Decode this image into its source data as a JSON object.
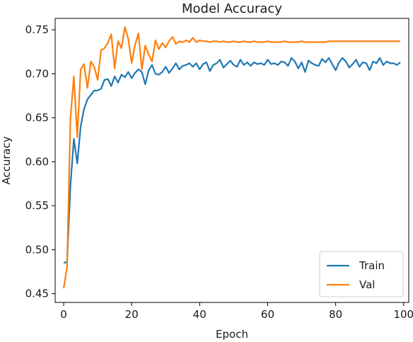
{
  "chart_data": {
    "type": "line",
    "title": "Model Accuracy",
    "xlabel": "Epoch",
    "ylabel": "Accuracy",
    "xlim": [
      -2.5,
      101.5
    ],
    "ylim": [
      0.44,
      0.763
    ],
    "xticks": [
      0,
      20,
      40,
      60,
      80,
      100
    ],
    "yticks": [
      0.45,
      0.5,
      0.55,
      0.6,
      0.65,
      0.7,
      0.75
    ],
    "ytick_labels": [
      "0.45",
      "0.50",
      "0.55",
      "0.60",
      "0.65",
      "0.70",
      "0.75"
    ],
    "grid": false,
    "legend_position": "lower-right",
    "series": [
      {
        "name": "Train",
        "color": "#1f77b4",
        "x": [
          0,
          1,
          2,
          3,
          4,
          5,
          6,
          7,
          8,
          9,
          10,
          11,
          12,
          13,
          14,
          15,
          16,
          17,
          18,
          19,
          20,
          21,
          22,
          23,
          24,
          25,
          26,
          27,
          28,
          29,
          30,
          31,
          32,
          33,
          34,
          35,
          36,
          37,
          38,
          39,
          40,
          41,
          42,
          43,
          44,
          45,
          46,
          47,
          48,
          49,
          50,
          51,
          52,
          53,
          54,
          55,
          56,
          57,
          58,
          59,
          60,
          61,
          62,
          63,
          64,
          65,
          66,
          67,
          68,
          69,
          70,
          71,
          72,
          73,
          74,
          75,
          76,
          77,
          78,
          79,
          80,
          81,
          82,
          83,
          84,
          85,
          86,
          87,
          88,
          89,
          90,
          91,
          92,
          93,
          94,
          95,
          96,
          97,
          98,
          99
        ],
        "values": [
          0.485,
          0.486,
          0.573,
          0.626,
          0.598,
          0.64,
          0.66,
          0.671,
          0.676,
          0.681,
          0.681,
          0.683,
          0.693,
          0.694,
          0.686,
          0.697,
          0.69,
          0.699,
          0.696,
          0.702,
          0.695,
          0.701,
          0.705,
          0.702,
          0.688,
          0.704,
          0.71,
          0.7,
          0.699,
          0.702,
          0.708,
          0.701,
          0.706,
          0.712,
          0.705,
          0.709,
          0.71,
          0.712,
          0.708,
          0.712,
          0.705,
          0.711,
          0.713,
          0.703,
          0.71,
          0.712,
          0.716,
          0.707,
          0.711,
          0.715,
          0.71,
          0.708,
          0.716,
          0.71,
          0.713,
          0.709,
          0.713,
          0.711,
          0.712,
          0.71,
          0.716,
          0.711,
          0.712,
          0.71,
          0.714,
          0.713,
          0.709,
          0.718,
          0.714,
          0.706,
          0.713,
          0.702,
          0.715,
          0.712,
          0.71,
          0.709,
          0.717,
          0.713,
          0.718,
          0.711,
          0.704,
          0.713,
          0.718,
          0.714,
          0.707,
          0.711,
          0.716,
          0.708,
          0.713,
          0.712,
          0.704,
          0.714,
          0.712,
          0.718,
          0.71,
          0.714,
          0.712,
          0.712,
          0.71,
          0.713
        ]
      },
      {
        "name": "Val",
        "color": "#ff7f0e",
        "x": [
          0,
          1,
          2,
          3,
          4,
          5,
          6,
          7,
          8,
          9,
          10,
          11,
          12,
          13,
          14,
          15,
          16,
          17,
          18,
          19,
          20,
          21,
          22,
          23,
          24,
          25,
          26,
          27,
          28,
          29,
          30,
          31,
          32,
          33,
          34,
          35,
          36,
          37,
          38,
          39,
          40,
          41,
          42,
          43,
          44,
          45,
          46,
          47,
          48,
          49,
          50,
          51,
          52,
          53,
          54,
          55,
          56,
          57,
          58,
          59,
          60,
          61,
          62,
          63,
          64,
          65,
          66,
          67,
          68,
          69,
          70,
          71,
          72,
          73,
          74,
          75,
          76,
          77,
          78,
          79,
          80,
          81,
          82,
          83,
          84,
          85,
          86,
          87,
          88,
          89,
          90,
          91,
          92,
          93,
          94,
          95,
          96,
          97,
          98,
          99
        ],
        "values": [
          0.456,
          0.48,
          0.65,
          0.697,
          0.628,
          0.705,
          0.711,
          0.684,
          0.714,
          0.708,
          0.693,
          0.727,
          0.729,
          0.735,
          0.745,
          0.706,
          0.737,
          0.729,
          0.753,
          0.74,
          0.712,
          0.733,
          0.746,
          0.705,
          0.732,
          0.722,
          0.714,
          0.738,
          0.728,
          0.735,
          0.73,
          0.737,
          0.742,
          0.734,
          0.737,
          0.736,
          0.738,
          0.736,
          0.741,
          0.736,
          0.738,
          0.737,
          0.737,
          0.736,
          0.737,
          0.737,
          0.736,
          0.737,
          0.736,
          0.736,
          0.737,
          0.736,
          0.736,
          0.737,
          0.736,
          0.736,
          0.737,
          0.736,
          0.736,
          0.736,
          0.737,
          0.736,
          0.736,
          0.736,
          0.736,
          0.737,
          0.736,
          0.736,
          0.736,
          0.736,
          0.737,
          0.736,
          0.736,
          0.736,
          0.736,
          0.736,
          0.736,
          0.736,
          0.737,
          0.737,
          0.737,
          0.737,
          0.737,
          0.737,
          0.737,
          0.737,
          0.737,
          0.737,
          0.737,
          0.737,
          0.737,
          0.737,
          0.737,
          0.737,
          0.737,
          0.737,
          0.737,
          0.737,
          0.737,
          0.737
        ]
      }
    ]
  }
}
